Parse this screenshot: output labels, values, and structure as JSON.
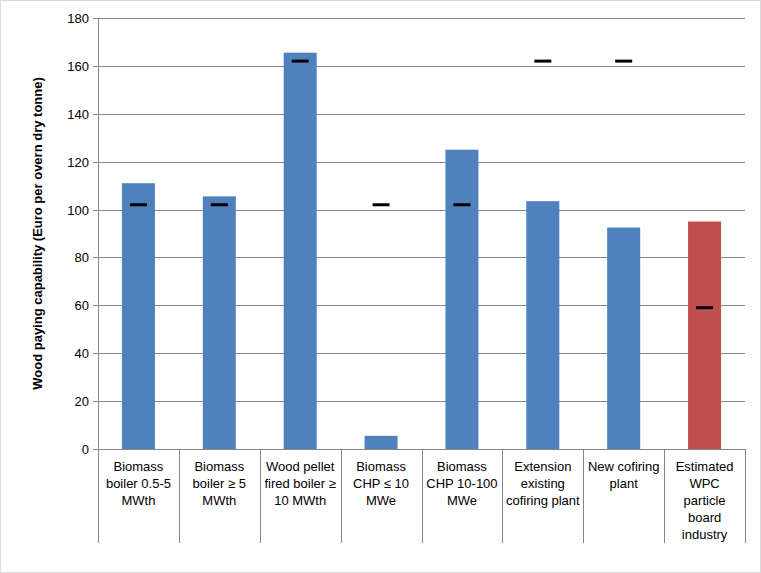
{
  "chart_data": {
    "type": "bar",
    "y_label": "Wood paying capability (Euro per overn dry tonne)",
    "categories": [
      "Biomass boiler  0.5-5 MWth",
      "Biomass boiler  ≥ 5 MWth",
      "Wood pellet fired boiler ≥ 10 MWth",
      "Biomass CHP ≤ 10 MWe",
      "Biomass CHP 10-100 MWe",
      "Extension existing cofiring plant",
      "New cofiring plant",
      "Estimated WPC particle board industry"
    ],
    "series": [
      {
        "type": "bar",
        "values": [
          111,
          105.5,
          165.5,
          5.5,
          125,
          103.5,
          92.5,
          95
        ],
        "colors": [
          "#4f81bd",
          "#4f81bd",
          "#4f81bd",
          "#4f81bd",
          "#4f81bd",
          "#4f81bd",
          "#4f81bd",
          "#c0504d"
        ]
      },
      {
        "type": "scatter",
        "marker": "dash",
        "color": "#000000",
        "values": [
          102,
          102,
          162,
          102,
          102,
          162,
          162,
          59
        ]
      }
    ],
    "ylim": [
      0,
      180
    ],
    "yticks": [
      0,
      20,
      40,
      60,
      80,
      100,
      120,
      140,
      160,
      180
    ],
    "grid": true
  }
}
